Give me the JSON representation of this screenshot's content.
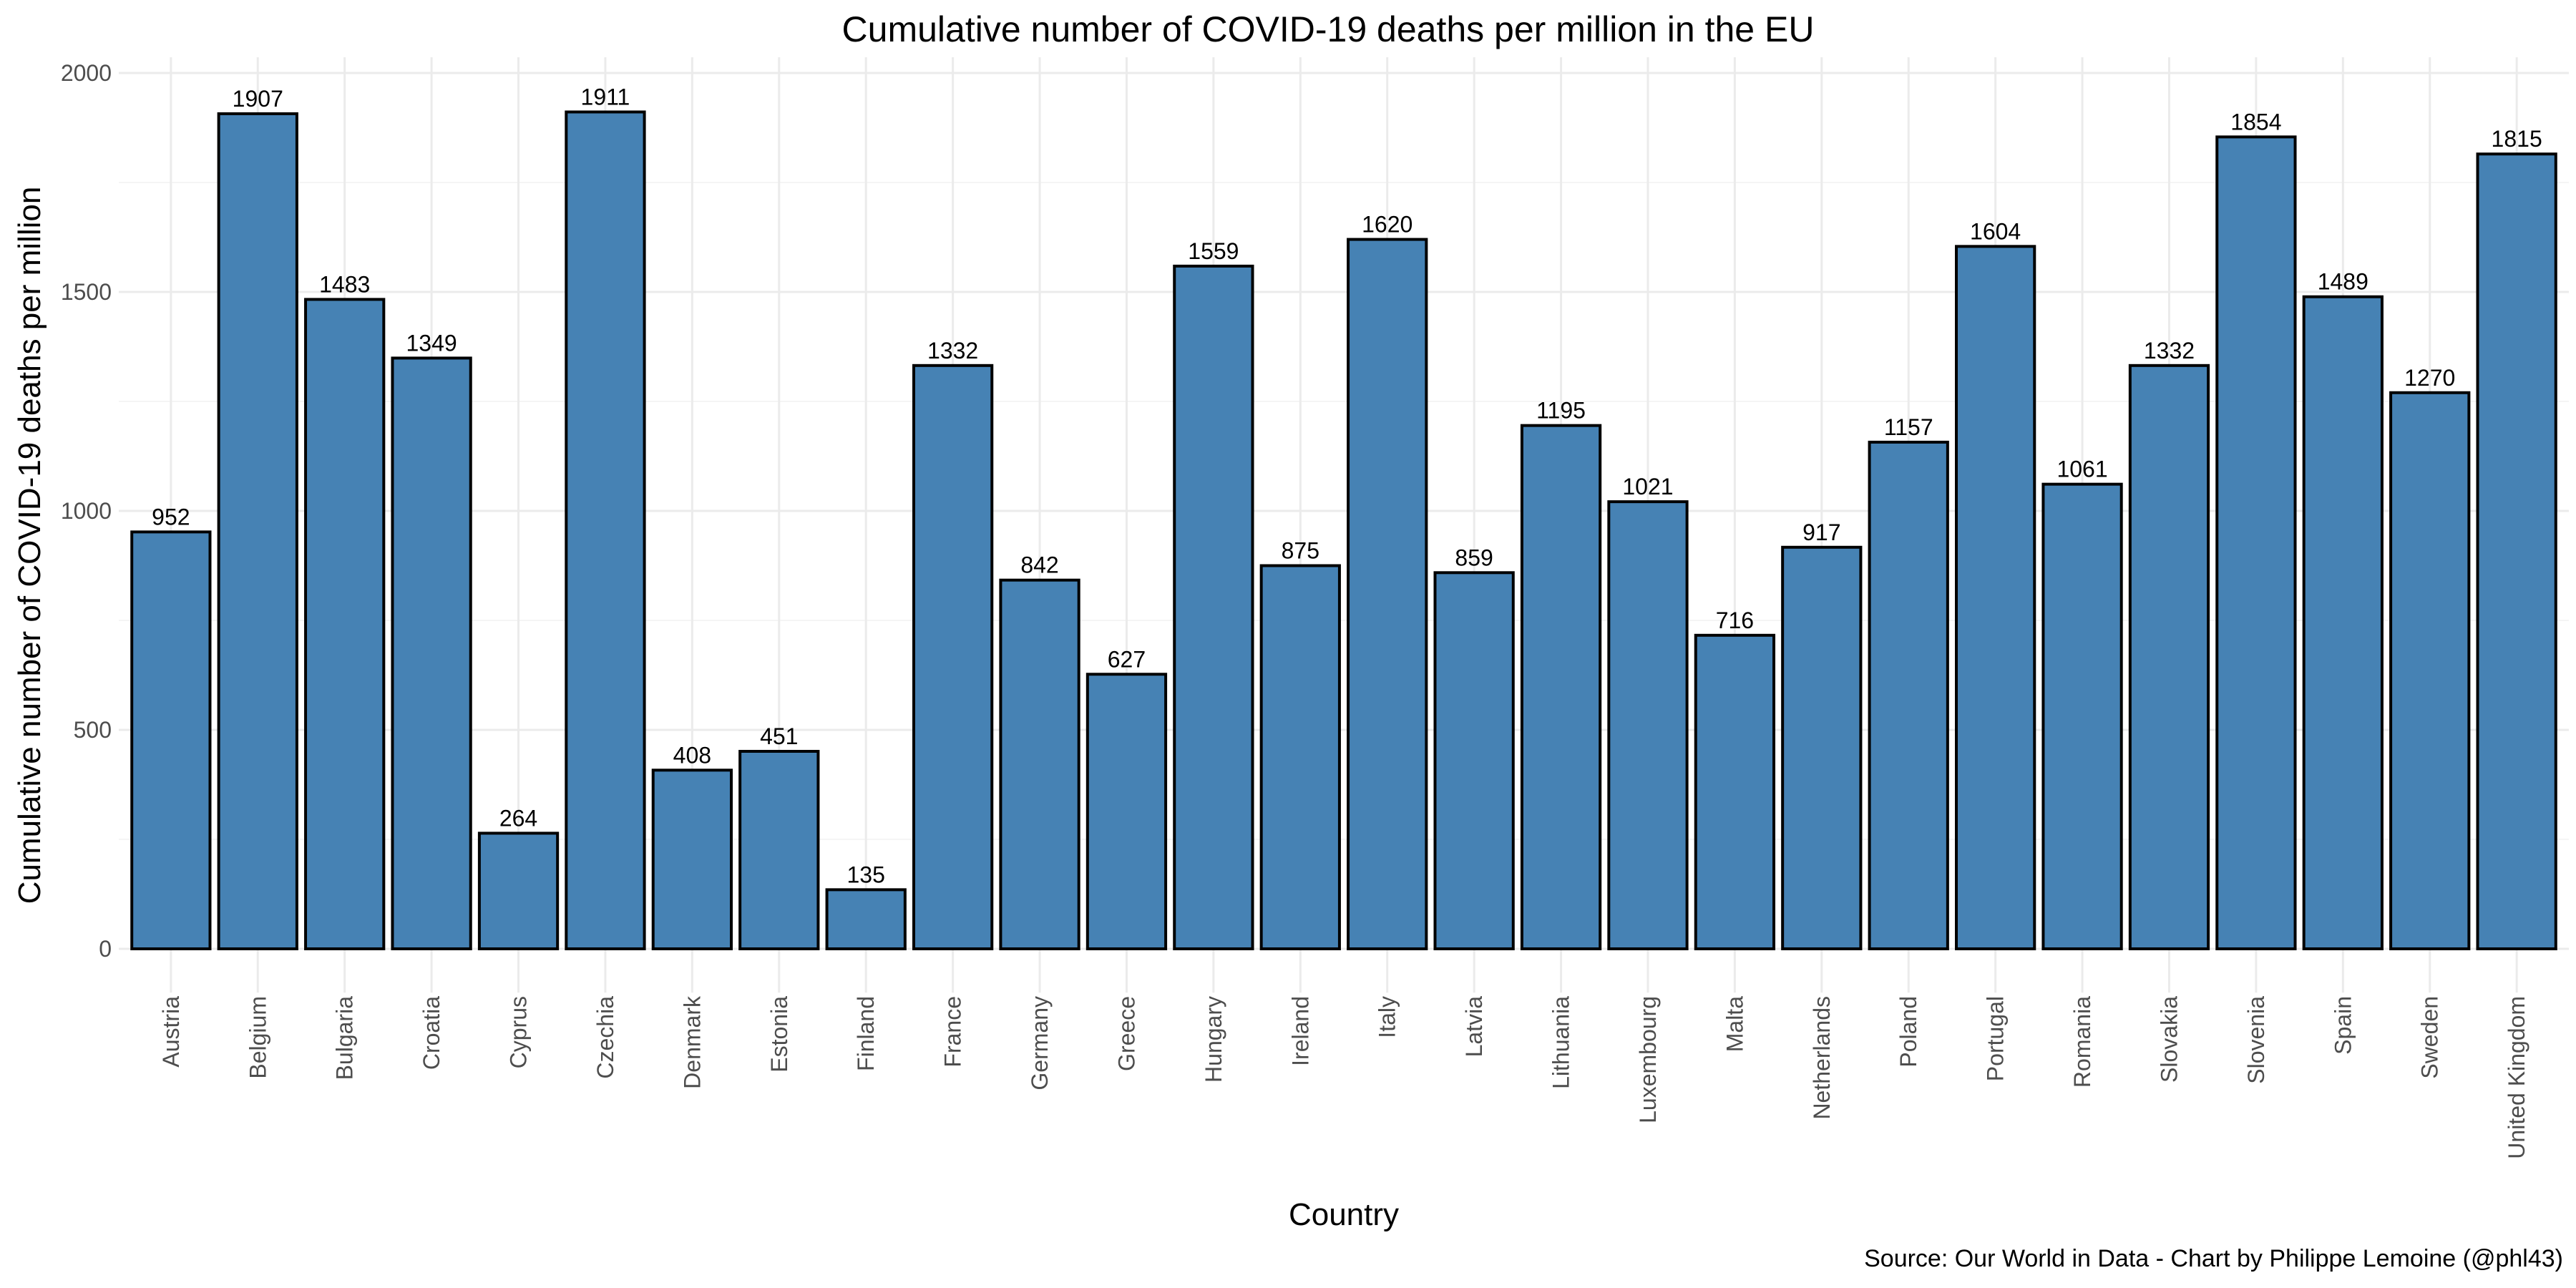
{
  "chart_data": {
    "type": "bar",
    "title": "Cumulative number of COVID-19 deaths per million in the EU",
    "xlabel": "Country",
    "ylabel": "Cumulative number of COVID-19 deaths per million",
    "caption": "Source: Our World in Data - Chart by Philippe Lemoine (@phl43)",
    "categories": [
      "Austria",
      "Belgium",
      "Bulgaria",
      "Croatia",
      "Cyprus",
      "Czechia",
      "Denmark",
      "Estonia",
      "Finland",
      "France",
      "Germany",
      "Greece",
      "Hungary",
      "Ireland",
      "Italy",
      "Latvia",
      "Lithuania",
      "Luxembourg",
      "Malta",
      "Netherlands",
      "Poland",
      "Portugal",
      "Romania",
      "Slovakia",
      "Slovenia",
      "Spain",
      "Sweden",
      "United Kingdom"
    ],
    "values": [
      952,
      1907,
      1483,
      1349,
      264,
      1911,
      408,
      451,
      135,
      1332,
      842,
      627,
      1559,
      875,
      1620,
      859,
      1195,
      1021,
      716,
      917,
      1157,
      1604,
      1061,
      1332,
      1854,
      1489,
      1270,
      1815
    ],
    "ylim": [
      -100,
      2000
    ],
    "yticks": [
      0,
      500,
      1000,
      1500,
      2000
    ],
    "grid": true,
    "legend": "none",
    "colors": {
      "bar_fill": "#4682b4",
      "bar_stroke": "#000000",
      "grid_major": "#ebebeb",
      "grid_minor": "#f5f5f5"
    }
  }
}
